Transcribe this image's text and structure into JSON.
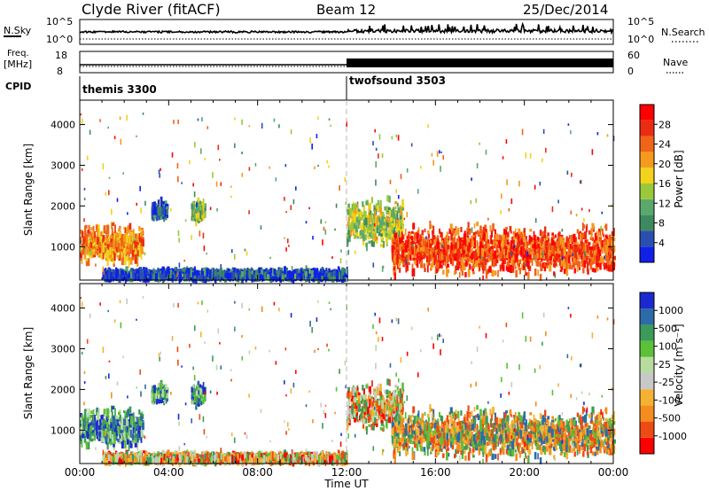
{
  "header": {
    "station": "Clyde River (fitACF)",
    "beam": "Beam 12",
    "date": "25/Dec/2014"
  },
  "strip_labels": {
    "nsky": "N.Sky",
    "nsky_top": "10^5",
    "nsky_bottom": "10^0",
    "nsearch": "N.Search",
    "nsearch_top": "10^5",
    "nsearch_bottom": "10^0",
    "freq_top": "Freq.",
    "freq_unit": "[MHz]",
    "freq_val_top": "18",
    "freq_val_bottom": "8",
    "nave": "Nave",
    "nave_top": "60",
    "nave_bottom": "0",
    "cpid": "CPID"
  },
  "cpid_segments": [
    {
      "name": "themis 3300",
      "start_hour": 0,
      "end_hour": 12
    },
    {
      "name": "twofsound 3503",
      "start_hour": 12,
      "end_hour": 24
    }
  ],
  "colors": {
    "power": [
      "#1020e8",
      "#2a4fb0",
      "#3e8a60",
      "#5aa86c",
      "#9ac83a",
      "#f2d21a",
      "#f59a1e",
      "#f06418",
      "#ec2c12",
      "#ff0000"
    ],
    "velocity": [
      "#ff0000",
      "#ee4a14",
      "#f58c1e",
      "#f5b232",
      "#c8c8c8",
      "#b8dca0",
      "#5cc038",
      "#3c9a5a",
      "#2c6aa8",
      "#1a2ad0"
    ]
  },
  "chart_data": [
    {
      "type": "heatmap",
      "title": "Power",
      "xlabel": "",
      "ylabel": "Slant Range [km]",
      "xlim": [
        0,
        24
      ],
      "ylim": [
        180,
        4600
      ],
      "y_ticks": [
        "1000",
        "2000",
        "3000",
        "4000"
      ],
      "colorbar_label": "Power [dB]",
      "colorbar_ticks": [
        "4",
        "8",
        "12",
        "16",
        "20",
        "24",
        "28"
      ],
      "series": [
        {
          "name": "early band",
          "x_range": [
            0,
            2.8
          ],
          "y_center": 1050,
          "y_spread": 280,
          "intensity": 0.75
        },
        {
          "name": "patch 03:40",
          "x_range": [
            3.2,
            3.9
          ],
          "y_center": 1900,
          "y_spread": 150,
          "intensity": 0.25
        },
        {
          "name": "patch 05:20",
          "x_range": [
            5.0,
            5.6
          ],
          "y_center": 1850,
          "y_spread": 180,
          "intensity": 0.45
        },
        {
          "name": "near range",
          "x_range": [
            1,
            12
          ],
          "y_center": 300,
          "y_spread": 80,
          "intensity": 0.15
        },
        {
          "name": "post-noon",
          "x_range": [
            12,
            14.5
          ],
          "y_center": 1600,
          "y_spread": 350,
          "intensity": 0.5
        },
        {
          "name": "afternoon band",
          "x_range": [
            14,
            24
          ],
          "y_center": 900,
          "y_spread": 350,
          "intensity": 0.9
        }
      ]
    },
    {
      "type": "heatmap",
      "title": "Velocity",
      "xlabel": "Time UT",
      "ylabel": "Slant Range [km]",
      "xlim": [
        0,
        24
      ],
      "ylim": [
        180,
        4600
      ],
      "x_ticks": [
        "00:00",
        "04:00",
        "08:00",
        "12:00",
        "16:00",
        "20:00",
        "00:00"
      ],
      "y_ticks": [
        "1000",
        "2000",
        "3000",
        "4000"
      ],
      "colorbar_label": "Velocity [m s⁻¹]",
      "colorbar_ticks": [
        "1000",
        "500",
        "100",
        "25",
        "-25",
        "-100",
        "-500",
        "-1000"
      ]
    }
  ]
}
